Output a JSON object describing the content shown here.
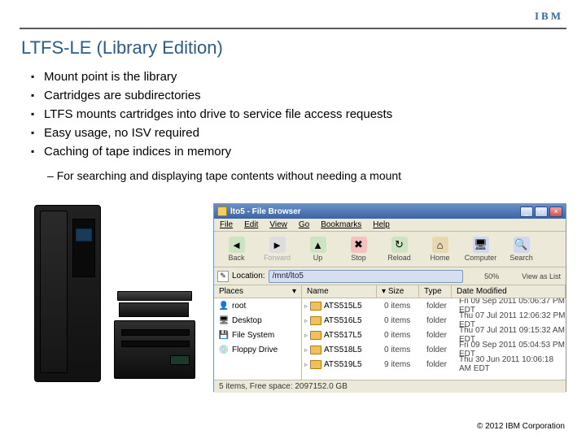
{
  "logo": "IBM",
  "title": "LTFS-LE (Library Edition)",
  "bullets": [
    "Mount point is the library",
    "Cartridges are subdirectories",
    "LTFS mounts cartridges into drive to service file access requests",
    "Easy usage, no ISV required",
    "Caching of tape indices in memory"
  ],
  "sub": "For searching and displaying tape contents without needing a mount",
  "copyright": "© 2012 IBM Corporation",
  "colors": {
    "title": "#2b5b8a",
    "logo": "#3b6caa",
    "window_titlebar_top": "#6b8fc4",
    "window_titlebar_bottom": "#3c65a6",
    "window_chrome": "#ece9d8",
    "folder": "#f0c060"
  },
  "fb": {
    "title": "lto5 - File Browser",
    "menu": [
      "File",
      "Edit",
      "View",
      "Go",
      "Bookmarks",
      "Help"
    ],
    "toolbar": [
      {
        "label": "Back",
        "icon": "◄",
        "bg": "#cde4c0",
        "enabled": true
      },
      {
        "label": "Forward",
        "icon": "►",
        "bg": "#dddddd",
        "enabled": false
      },
      {
        "label": "Up",
        "icon": "▲",
        "bg": "#cde4c0",
        "enabled": true
      },
      {
        "label": "Stop",
        "icon": "✖",
        "bg": "#f5c0c0",
        "enabled": true
      },
      {
        "label": "Reload",
        "icon": "↻",
        "bg": "#cde4c0",
        "enabled": true
      },
      {
        "label": "Home",
        "icon": "⌂",
        "bg": "#e8d8b0",
        "enabled": true
      },
      {
        "label": "Computer",
        "icon": "🖥",
        "bg": "#d0d8f0",
        "enabled": true
      },
      {
        "label": "Search",
        "icon": "🔍",
        "bg": "#d0d8f0",
        "enabled": true
      }
    ],
    "loc_label": "Location:",
    "path": "/mnt/lto5",
    "zoom": "50%",
    "view": "View as List",
    "side_hdr": "Places",
    "places": [
      {
        "icon": "👤",
        "label": "root"
      },
      {
        "icon": "🖥",
        "label": "Desktop"
      },
      {
        "icon": "💾",
        "label": "File System"
      },
      {
        "icon": "💿",
        "label": "Floppy Drive"
      }
    ],
    "cols": {
      "name": "Name",
      "size": "Size",
      "type": "Type",
      "date": "Date Modified"
    },
    "rows": [
      {
        "name": "ATS515L5",
        "size": "0 items",
        "type": "folder",
        "date": "Fri 09 Sep 2011 05:06:37 PM EDT"
      },
      {
        "name": "ATS516L5",
        "size": "0 items",
        "type": "folder",
        "date": "Thu 07 Jul 2011 12:06:32 PM EDT"
      },
      {
        "name": "ATS517L5",
        "size": "0 items",
        "type": "folder",
        "date": "Thu 07 Jul 2011 09:15:32 AM EDT"
      },
      {
        "name": "ATS518L5",
        "size": "0 items",
        "type": "folder",
        "date": "Fri 09 Sep 2011 05:04:53 PM EDT"
      },
      {
        "name": "ATS519L5",
        "size": "9 items",
        "type": "folder",
        "date": "Thu 30 Jun 2011 10:06:18 AM EDT"
      }
    ],
    "status": "5 items, Free space: 2097152.0 GB"
  }
}
